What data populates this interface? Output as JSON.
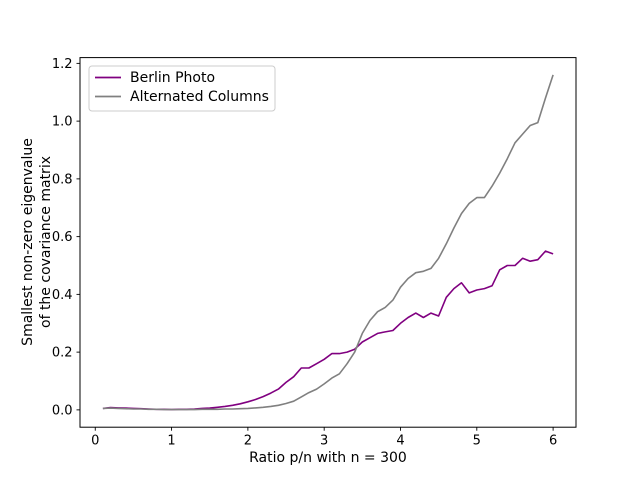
{
  "figure": {
    "background": "#ffffff",
    "spine_color": "#000000"
  },
  "legend": {
    "border_color": "#cccccc",
    "background": "#ffffff",
    "entries": [
      {
        "label": "Berlin Photo",
        "color": "#800080"
      },
      {
        "label": "Alternated Columns",
        "color": "#808080"
      }
    ]
  },
  "chart_data": {
    "type": "line",
    "title": "",
    "xlabel": "Ratio p/n with n = 300",
    "ylabel_line1": "Smallest non-zero eigenvalue",
    "ylabel_line2": "of the covariance matrix",
    "legend_position": "upper-left",
    "grid": false,
    "xlim": [
      -0.2,
      6.3
    ],
    "ylim": [
      -0.06,
      1.22
    ],
    "xticks": [
      0,
      1,
      2,
      3,
      4,
      5,
      6
    ],
    "xtick_labels": [
      "0",
      "1",
      "2",
      "3",
      "4",
      "5",
      "6"
    ],
    "yticks": [
      0.0,
      0.2,
      0.4,
      0.6,
      0.8,
      1.0,
      1.2
    ],
    "ytick_labels": [
      "0.0",
      "0.2",
      "0.4",
      "0.6",
      "0.8",
      "1.0",
      "1.2"
    ],
    "x": [
      0.1,
      0.2,
      0.3,
      0.4,
      0.5,
      0.6,
      0.7,
      0.8,
      0.9,
      1.0,
      1.1,
      1.2,
      1.3,
      1.4,
      1.5,
      1.6,
      1.7,
      1.8,
      1.9,
      2.0,
      2.1,
      2.2,
      2.3,
      2.4,
      2.5,
      2.6,
      2.7,
      2.8,
      2.9,
      3.0,
      3.1,
      3.2,
      3.3,
      3.4,
      3.5,
      3.6,
      3.7,
      3.8,
      3.9,
      4.0,
      4.1,
      4.2,
      4.3,
      4.4,
      4.5,
      4.6,
      4.7,
      4.8,
      4.9,
      5.0,
      5.1,
      5.2,
      5.3,
      5.4,
      5.5,
      5.6,
      5.7,
      5.8,
      5.9,
      6.0
    ],
    "series": [
      {
        "name": "Berlin Photo",
        "color": "#800080",
        "values": [
          0.005,
          0.008,
          0.007,
          0.006,
          0.005,
          0.004,
          0.003,
          0.002,
          0.002,
          0.001,
          0.002,
          0.002,
          0.003,
          0.005,
          0.006,
          0.009,
          0.012,
          0.016,
          0.021,
          0.028,
          0.036,
          0.046,
          0.058,
          0.072,
          0.095,
          0.115,
          0.145,
          0.145,
          0.16,
          0.175,
          0.195,
          0.195,
          0.2,
          0.21,
          0.235,
          0.25,
          0.265,
          0.27,
          0.275,
          0.3,
          0.32,
          0.335,
          0.32,
          0.335,
          0.325,
          0.39,
          0.42,
          0.44,
          0.405,
          0.415,
          0.42,
          0.43,
          0.485,
          0.5,
          0.5,
          0.525,
          0.515,
          0.52,
          0.55,
          0.54
        ]
      },
      {
        "name": "Alternated Columns",
        "color": "#808080",
        "values": [
          0.005,
          0.006,
          0.005,
          0.004,
          0.003,
          0.003,
          0.002,
          0.002,
          0.001,
          0.001,
          0.001,
          0.001,
          0.001,
          0.002,
          0.002,
          0.002,
          0.003,
          0.003,
          0.004,
          0.005,
          0.007,
          0.009,
          0.012,
          0.016,
          0.022,
          0.03,
          0.045,
          0.06,
          0.072,
          0.09,
          0.11,
          0.125,
          0.16,
          0.2,
          0.265,
          0.31,
          0.34,
          0.355,
          0.38,
          0.425,
          0.455,
          0.475,
          0.48,
          0.49,
          0.525,
          0.575,
          0.63,
          0.68,
          0.715,
          0.735,
          0.735,
          0.775,
          0.82,
          0.87,
          0.925,
          0.955,
          0.985,
          0.995,
          1.08,
          1.16
        ]
      }
    ]
  }
}
